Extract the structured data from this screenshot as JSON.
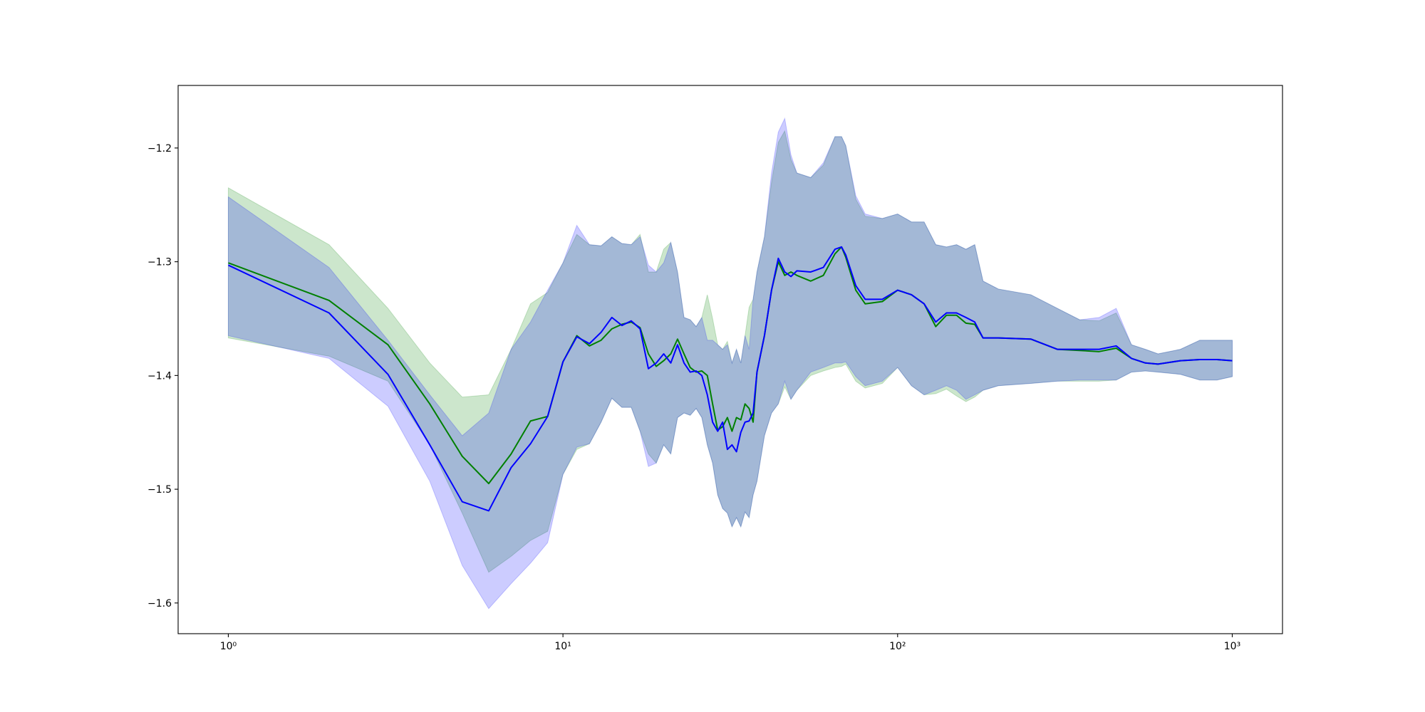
{
  "chart_data": {
    "type": "line",
    "xscale": "log",
    "x": [
      1,
      2,
      3,
      4,
      5,
      6,
      7,
      8,
      9,
      10,
      11,
      12,
      13,
      14,
      15,
      16,
      17,
      18,
      19,
      20,
      21,
      22,
      23,
      24,
      25,
      26,
      27,
      28,
      29,
      30,
      31,
      32,
      33,
      34,
      35,
      36,
      37,
      38,
      40,
      42,
      44,
      46,
      48,
      50,
      55,
      60,
      65,
      68,
      70,
      75,
      80,
      90,
      100,
      110,
      120,
      130,
      140,
      150,
      160,
      170,
      180,
      200,
      250,
      300,
      350,
      400,
      450,
      500,
      550,
      600,
      700,
      800,
      900,
      1000
    ],
    "xlim": [
      0.708,
      1413
    ],
    "xticks": [
      {
        "value": 1,
        "label": "10⁰"
      },
      {
        "value": 10,
        "label": "10¹"
      },
      {
        "value": 100,
        "label": "10²"
      },
      {
        "value": 1000,
        "label": "10³"
      }
    ],
    "ylim": [
      -1.627,
      -1.145
    ],
    "yticks": [
      {
        "value": -1.6,
        "label": "−1.6"
      },
      {
        "value": -1.5,
        "label": "−1.5"
      },
      {
        "value": -1.4,
        "label": "−1.4"
      },
      {
        "value": -1.3,
        "label": "−1.3"
      },
      {
        "value": -1.2,
        "label": "−1.2"
      }
    ],
    "series": [
      {
        "color": "#008000",
        "values": [
          -1.301,
          -1.334,
          -1.373,
          -1.425,
          -1.471,
          -1.495,
          -1.469,
          -1.44,
          -1.436,
          -1.388,
          -1.365,
          -1.374,
          -1.369,
          -1.359,
          -1.355,
          -1.353,
          -1.358,
          -1.381,
          -1.392,
          -1.387,
          -1.381,
          -1.368,
          -1.381,
          -1.393,
          -1.397,
          -1.396,
          -1.4,
          -1.425,
          -1.448,
          -1.445,
          -1.437,
          -1.449,
          -1.437,
          -1.439,
          -1.425,
          -1.429,
          -1.441,
          -1.397,
          -1.365,
          -1.325,
          -1.3,
          -1.312,
          -1.309,
          -1.312,
          -1.317,
          -1.312,
          -1.293,
          -1.287,
          -1.296,
          -1.325,
          -1.337,
          -1.335,
          -1.325,
          -1.329,
          -1.337,
          -1.357,
          -1.347,
          -1.347,
          -1.354,
          -1.355,
          -1.367,
          -1.367,
          -1.368,
          -1.377,
          -1.378,
          -1.379,
          -1.376,
          -1.385,
          -1.389,
          -1.39,
          -1.387,
          -1.386,
          -1.386,
          -1.387
        ],
        "upper": [
          -1.235,
          -1.285,
          -1.341,
          -1.389,
          -1.419,
          -1.417,
          -1.377,
          -1.337,
          -1.327,
          -1.301,
          -1.276,
          -1.285,
          -1.286,
          -1.278,
          -1.284,
          -1.285,
          -1.276,
          -1.309,
          -1.309,
          -1.289,
          -1.283,
          -1.309,
          -1.349,
          -1.351,
          -1.357,
          -1.349,
          -1.329,
          -1.35,
          -1.373,
          -1.377,
          -1.37,
          -1.389,
          -1.377,
          -1.389,
          -1.365,
          -1.34,
          -1.333,
          -1.309,
          -1.278,
          -1.23,
          -1.195,
          -1.185,
          -1.21,
          -1.222,
          -1.226,
          -1.215,
          -1.19,
          -1.19,
          -1.198,
          -1.245,
          -1.26,
          -1.262,
          -1.258,
          -1.265,
          -1.265,
          -1.285,
          -1.287,
          -1.285,
          -1.289,
          -1.285,
          -1.317,
          -1.324,
          -1.329,
          -1.341,
          -1.351,
          -1.352,
          -1.345,
          -1.373,
          -1.377,
          -1.381,
          -1.377,
          -1.369,
          -1.369,
          -1.369
        ],
        "lower": [
          -1.367,
          -1.383,
          -1.405,
          -1.461,
          -1.521,
          -1.573,
          -1.559,
          -1.545,
          -1.537,
          -1.487,
          -1.465,
          -1.46,
          -1.441,
          -1.42,
          -1.428,
          -1.428,
          -1.449,
          -1.469,
          -1.477,
          -1.461,
          -1.469,
          -1.437,
          -1.433,
          -1.435,
          -1.429,
          -1.437,
          -1.461,
          -1.477,
          -1.505,
          -1.517,
          -1.521,
          -1.533,
          -1.525,
          -1.533,
          -1.52,
          -1.525,
          -1.505,
          -1.493,
          -1.453,
          -1.433,
          -1.425,
          -1.41,
          -1.421,
          -1.413,
          -1.4,
          -1.396,
          -1.393,
          -1.392,
          -1.39,
          -1.405,
          -1.411,
          -1.407,
          -1.393,
          -1.409,
          -1.417,
          -1.416,
          -1.412,
          -1.418,
          -1.423,
          -1.419,
          -1.413,
          -1.409,
          -1.407,
          -1.405,
          -1.405,
          -1.405,
          -1.404,
          -1.397,
          -1.396,
          -1.397,
          -1.399,
          -1.404,
          -1.404,
          -1.401
        ]
      },
      {
        "color": "#0000ff",
        "values": [
          -1.303,
          -1.345,
          -1.399,
          -1.461,
          -1.511,
          -1.519,
          -1.481,
          -1.46,
          -1.436,
          -1.388,
          -1.366,
          -1.372,
          -1.362,
          -1.349,
          -1.356,
          -1.352,
          -1.359,
          -1.394,
          -1.389,
          -1.381,
          -1.389,
          -1.373,
          -1.389,
          -1.397,
          -1.396,
          -1.4,
          -1.417,
          -1.441,
          -1.449,
          -1.441,
          -1.465,
          -1.461,
          -1.467,
          -1.45,
          -1.441,
          -1.44,
          -1.433,
          -1.397,
          -1.365,
          -1.325,
          -1.297,
          -1.309,
          -1.313,
          -1.308,
          -1.309,
          -1.305,
          -1.289,
          -1.287,
          -1.294,
          -1.321,
          -1.333,
          -1.333,
          -1.325,
          -1.329,
          -1.337,
          -1.353,
          -1.345,
          -1.345,
          -1.349,
          -1.353,
          -1.367,
          -1.367,
          -1.368,
          -1.377,
          -1.377,
          -1.377,
          -1.374,
          -1.385,
          -1.389,
          -1.39,
          -1.387,
          -1.386,
          -1.386,
          -1.387
        ],
        "upper": [
          -1.243,
          -1.305,
          -1.369,
          -1.417,
          -1.453,
          -1.433,
          -1.377,
          -1.353,
          -1.325,
          -1.301,
          -1.268,
          -1.285,
          -1.286,
          -1.278,
          -1.284,
          -1.285,
          -1.278,
          -1.303,
          -1.309,
          -1.301,
          -1.283,
          -1.309,
          -1.349,
          -1.351,
          -1.357,
          -1.349,
          -1.369,
          -1.369,
          -1.373,
          -1.377,
          -1.373,
          -1.389,
          -1.377,
          -1.389,
          -1.365,
          -1.377,
          -1.333,
          -1.309,
          -1.278,
          -1.222,
          -1.186,
          -1.174,
          -1.206,
          -1.222,
          -1.226,
          -1.213,
          -1.19,
          -1.19,
          -1.198,
          -1.242,
          -1.258,
          -1.262,
          -1.258,
          -1.265,
          -1.265,
          -1.285,
          -1.287,
          -1.285,
          -1.289,
          -1.285,
          -1.317,
          -1.324,
          -1.329,
          -1.341,
          -1.351,
          -1.349,
          -1.341,
          -1.373,
          -1.377,
          -1.381,
          -1.377,
          -1.369,
          -1.369,
          -1.369
        ],
        "lower": [
          -1.365,
          -1.385,
          -1.427,
          -1.493,
          -1.567,
          -1.605,
          -1.583,
          -1.565,
          -1.547,
          -1.487,
          -1.463,
          -1.46,
          -1.441,
          -1.42,
          -1.428,
          -1.428,
          -1.449,
          -1.48,
          -1.477,
          -1.461,
          -1.469,
          -1.437,
          -1.433,
          -1.435,
          -1.429,
          -1.437,
          -1.461,
          -1.477,
          -1.505,
          -1.517,
          -1.521,
          -1.533,
          -1.525,
          -1.533,
          -1.52,
          -1.525,
          -1.505,
          -1.493,
          -1.453,
          -1.433,
          -1.425,
          -1.405,
          -1.421,
          -1.413,
          -1.397,
          -1.393,
          -1.389,
          -1.389,
          -1.388,
          -1.401,
          -1.409,
          -1.405,
          -1.393,
          -1.409,
          -1.417,
          -1.413,
          -1.409,
          -1.413,
          -1.421,
          -1.417,
          -1.413,
          -1.409,
          -1.407,
          -1.405,
          -1.404,
          -1.404,
          -1.404,
          -1.397,
          -1.396,
          -1.397,
          -1.399,
          -1.404,
          -1.404,
          -1.401
        ]
      }
    ]
  }
}
